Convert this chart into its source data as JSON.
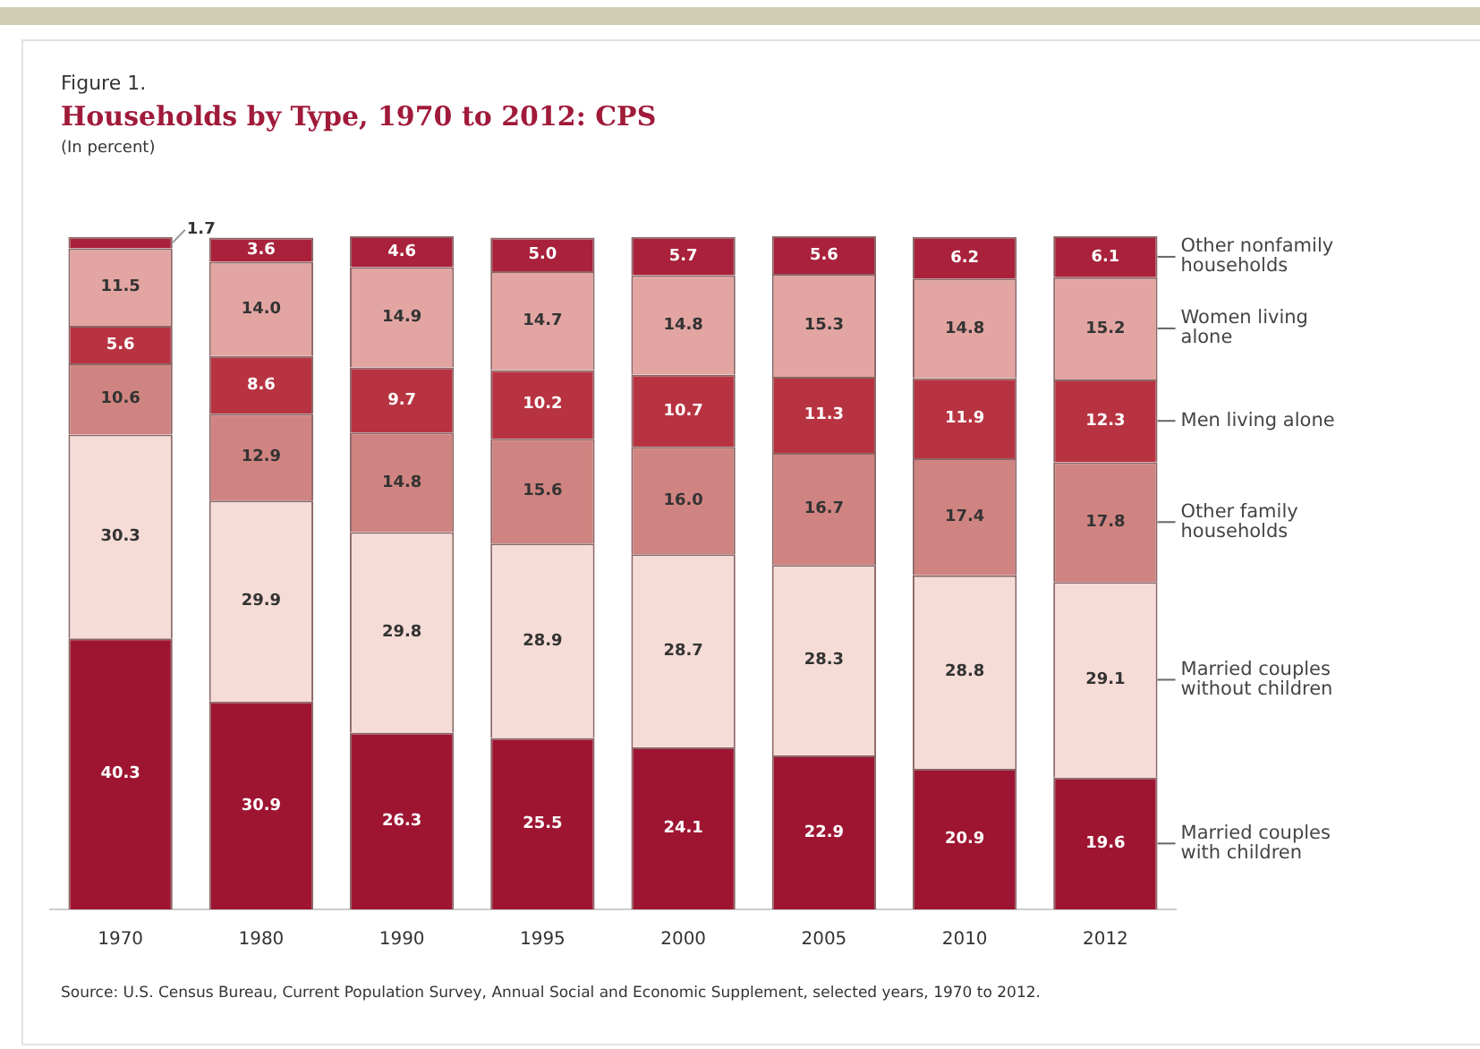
{
  "chart_data": {
    "type": "bar",
    "stacked": true,
    "title": "Households by Type, 1970 to 2012: CPS",
    "subtitle": "(In percent)",
    "annotations": [
      "Figure 1.",
      "Source: U.S. Census Bureau, Current Population Survey, Annual Social and Economic Supplement, selected years, 1970 to 2012."
    ],
    "categories": [
      "1970",
      "1980",
      "1990",
      "1995",
      "2000",
      "2005",
      "2010",
      "2012"
    ],
    "series": [
      {
        "name": "Married couples with children",
        "color": "#9e1532",
        "values": [
          40.3,
          30.9,
          26.3,
          25.5,
          24.1,
          22.9,
          20.9,
          19.6
        ],
        "value_labels": [
          "40.3",
          "30.9",
          "26.3",
          "25.5",
          "24.1",
          "22.9",
          "20.9",
          "19.6"
        ]
      },
      {
        "name": "Married couples without children",
        "color": "#f6dcd6",
        "values": [
          30.3,
          29.9,
          29.8,
          28.9,
          28.7,
          28.3,
          28.8,
          29.1
        ],
        "value_labels": [
          "30.3",
          "29.9",
          "29.8",
          "28.9",
          "28.7",
          "28.3",
          "28.8",
          "29.1"
        ]
      },
      {
        "name": "Other family households",
        "color": "#d08481",
        "values": [
          10.6,
          12.9,
          14.8,
          15.6,
          16.0,
          16.7,
          17.4,
          17.8
        ],
        "value_labels": [
          "10.6",
          "12.9",
          "14.8",
          "15.6",
          "16.0",
          "16.7",
          "17.4",
          "17.8"
        ]
      },
      {
        "name": "Men living alone",
        "color": "#b83341",
        "values": [
          5.6,
          8.6,
          9.7,
          10.2,
          10.7,
          11.3,
          11.9,
          12.3
        ],
        "value_labels": [
          "5.6",
          "8.6",
          "9.7",
          "10.2",
          "10.7",
          "11.3",
          "11.9",
          "12.3"
        ]
      },
      {
        "name": "Women living alone",
        "color": "#e2a5a2",
        "values": [
          11.5,
          14.0,
          14.9,
          14.7,
          14.8,
          15.3,
          14.8,
          15.2
        ],
        "value_labels": [
          "11.5",
          "14.0",
          "14.9",
          "14.7",
          "14.8",
          "15.3",
          "14.8",
          "15.2"
        ]
      },
      {
        "name": "Other nonfamily households",
        "color": "#a9213b",
        "values": [
          1.7,
          3.6,
          4.6,
          5.0,
          5.7,
          5.6,
          6.2,
          6.1
        ],
        "value_labels": [
          "1.7",
          "3.6",
          "4.6",
          "5.0",
          "5.7",
          "5.6",
          "6.2",
          "6.1"
        ]
      }
    ],
    "legend": false
  }
}
